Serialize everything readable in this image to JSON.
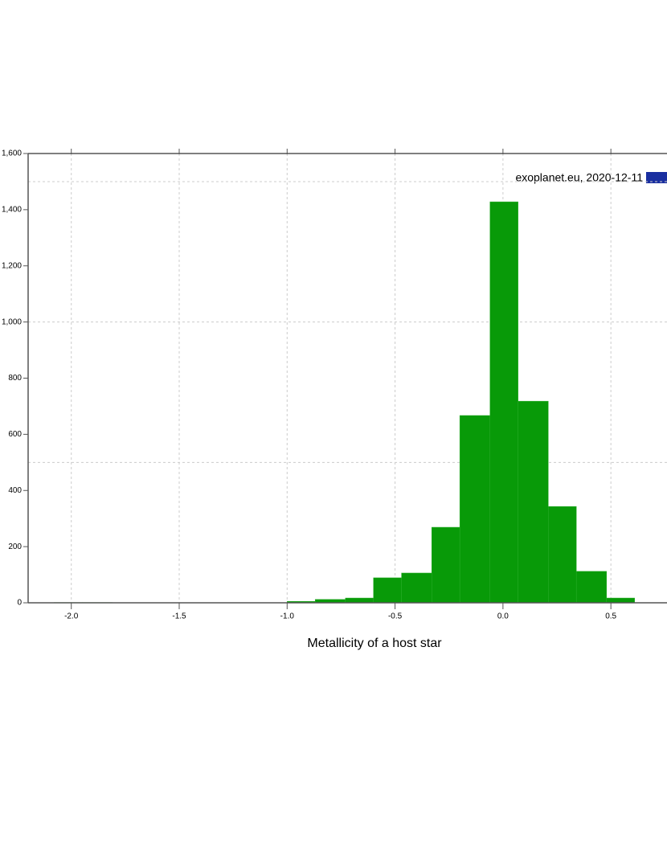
{
  "chart_data": {
    "type": "histogram",
    "xlabel": "Metallicity of a host star",
    "annotation": "exoplanet.eu, 2020-12-11",
    "bins": [
      -2.08,
      -1.95,
      -1.81,
      -1.68,
      -1.54,
      -1.41,
      -1.27,
      -1.14,
      -1.0,
      -0.87,
      -0.73,
      -0.6,
      -0.47,
      -0.33,
      -0.2,
      -0.06,
      0.07,
      0.21,
      0.34,
      0.48,
      0.61
    ],
    "values": [
      1,
      1,
      0,
      0,
      0,
      0,
      0,
      0,
      5,
      12,
      17,
      89,
      106,
      269,
      667,
      1428,
      718,
      343,
      112,
      17
    ],
    "color": "#089a08",
    "xlim": [
      -2.2,
      0.76
    ],
    "ylim": [
      0,
      1600
    ],
    "xticks": [
      {
        "value": -2.0,
        "label": "-2.0"
      },
      {
        "value": -1.5,
        "label": "-1.5"
      },
      {
        "value": -1.0,
        "label": "-1.0"
      },
      {
        "value": -0.5,
        "label": "-0.5"
      },
      {
        "value": 0,
        "label": "0.0"
      },
      {
        "value": 0.5,
        "label": "0.5"
      }
    ],
    "yticks": [
      0,
      200,
      400,
      600,
      800,
      {
        "value": 1000,
        "label": "1,000"
      },
      {
        "value": 1200,
        "label": "1,200"
      },
      {
        "value": 1400,
        "label": "1,400"
      },
      {
        "value": 1600,
        "label": "1,600"
      }
    ],
    "ygrid": [
      500,
      1000,
      1500
    ],
    "grid": true
  }
}
